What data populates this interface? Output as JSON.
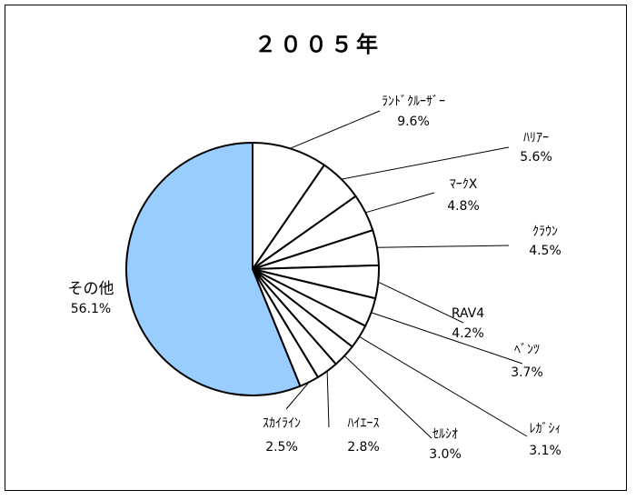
{
  "chart_data": {
    "type": "pie",
    "title": "２００５年",
    "categories": [
      "ﾗﾝﾄﾞｸﾙｰｻﾞｰ",
      "ﾊﾘｱｰ",
      "ﾏｰｸX",
      "ｸﾗｳﾝ",
      "RAV4",
      "ﾍﾞﾝﾂ",
      "ﾚｶﾞｼｨ",
      "ｾﾙｼｵ",
      "ﾊｲｴｰｽ",
      "ｽｶｲﾗｲﾝ",
      "その他"
    ],
    "values": [
      9.6,
      5.6,
      4.8,
      4.5,
      4.2,
      3.7,
      3.1,
      3.0,
      2.8,
      2.5,
      56.1
    ],
    "value_labels": [
      "9.6%",
      "5.6%",
      "4.8%",
      "4.5%",
      "4.2%",
      "3.7%",
      "3.1%",
      "3.0%",
      "2.8%",
      "2.5%",
      "56.1%"
    ],
    "colors": [
      "#ffffff",
      "#ffffff",
      "#ffffff",
      "#ffffff",
      "#ffffff",
      "#ffffff",
      "#ffffff",
      "#ffffff",
      "#ffffff",
      "#ffffff",
      "#99ccff"
    ]
  }
}
